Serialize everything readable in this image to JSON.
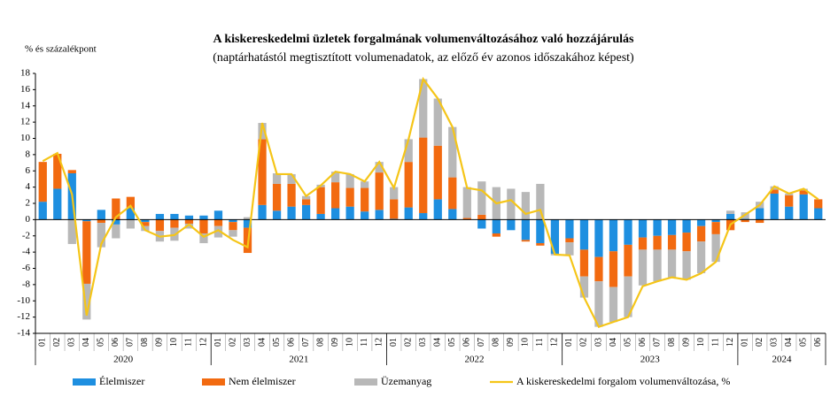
{
  "chart_data": {
    "type": "stacked-bar-line",
    "title": "A kiskereskedelmi üzletek forgalmának volumenváltozásához való hozzájárulás",
    "subtitle": "(naptárhatástól megtisztított volumenadatok, az előző év azonos időszakához képest)",
    "y_label": "% és százalékpont",
    "categories": [
      "01",
      "02",
      "03",
      "04",
      "05",
      "06",
      "07",
      "08",
      "09",
      "10",
      "11",
      "12",
      "01",
      "02",
      "03",
      "04",
      "05",
      "06",
      "07",
      "08",
      "09",
      "10",
      "11",
      "12",
      "01",
      "02",
      "03",
      "04",
      "05",
      "06",
      "07",
      "08",
      "09",
      "10",
      "11",
      "12",
      "01",
      "02",
      "03",
      "04",
      "05",
      "06",
      "07",
      "08",
      "09",
      "10",
      "11",
      "12",
      "01",
      "02",
      "03",
      "04",
      "05",
      "06"
    ],
    "years": [
      "2020",
      "2021",
      "2022",
      "2023",
      "2024"
    ],
    "ylim": [
      -14,
      18
    ],
    "yticks": [
      -14,
      -12,
      -10,
      -8,
      -6,
      -4,
      -2,
      0,
      2,
      4,
      6,
      8,
      10,
      12,
      14,
      16,
      18
    ],
    "series": [
      {
        "name": "Élelmiszer",
        "color": "#1e8fe0",
        "values": [
          2.2,
          3.8,
          5.7,
          -0.2,
          1.2,
          -0.6,
          1.4,
          -0.3,
          0.7,
          0.7,
          0.5,
          0.5,
          1.1,
          -0.3,
          -1.0,
          1.8,
          1.1,
          1.6,
          1.8,
          0.7,
          1.4,
          1.6,
          1.0,
          1.2,
          0.1,
          1.5,
          0.8,
          2.5,
          1.3,
          0.0,
          -1.1,
          -1.7,
          -1.3,
          -2.5,
          -2.9,
          -4.2,
          -2.3,
          -3.7,
          -4.6,
          -3.9,
          -3.1,
          -2.2,
          -2.0,
          -1.9,
          -1.6,
          -0.8,
          -0.3,
          0.7,
          0.1,
          1.4,
          3.2,
          1.6,
          3.1,
          1.4
        ]
      },
      {
        "name": "Nem élelmiszer",
        "color": "#f26a10",
        "values": [
          4.9,
          4.3,
          0.4,
          -7.7,
          -0.4,
          2.6,
          1.4,
          -0.5,
          -1.4,
          -1.0,
          -0.5,
          -1.7,
          -0.8,
          -1.0,
          -3.1,
          8.1,
          3.3,
          2.8,
          0.7,
          3.3,
          3.2,
          2.3,
          2.9,
          4.6,
          2.4,
          5.6,
          9.3,
          6.6,
          3.9,
          0.2,
          0.6,
          -0.4,
          0.0,
          -0.2,
          -0.3,
          0.0,
          -0.5,
          -3.3,
          -3.0,
          -4.4,
          -3.9,
          -1.5,
          -1.7,
          -1.8,
          -2.3,
          -1.9,
          -1.5,
          -1.3,
          -0.3,
          -0.4,
          0.5,
          1.4,
          0.5,
          1.1
        ]
      },
      {
        "name": "Üzemanyag",
        "color": "#b8b8b8",
        "values": [
          0.0,
          0.0,
          -3.0,
          -4.4,
          -3.0,
          -1.7,
          -1.1,
          -0.6,
          -1.3,
          -1.6,
          -0.6,
          -1.2,
          -1.4,
          -0.8,
          0.3,
          2.0,
          1.3,
          1.2,
          0.4,
          0.3,
          1.3,
          1.7,
          0.8,
          1.3,
          1.5,
          2.8,
          7.2,
          5.8,
          6.2,
          3.8,
          4.1,
          4.0,
          3.8,
          3.4,
          4.4,
          -0.2,
          -1.6,
          -2.6,
          -5.6,
          -4.3,
          -5.0,
          -4.4,
          -3.9,
          -3.4,
          -3.5,
          -3.9,
          -3.4,
          0.4,
          0.8,
          0.8,
          0.4,
          0.2,
          0.2,
          0.0
        ]
      },
      {
        "name": "A kiskereskedelmi forgalom volumenváltozása, %",
        "color": "#f5c518",
        "kind": "line",
        "values": [
          7.2,
          8.2,
          3.1,
          -11.8,
          -3.0,
          0.3,
          1.7,
          -1.3,
          -2.1,
          -1.9,
          -0.6,
          -2.1,
          -1.3,
          -2.5,
          -3.4,
          11.9,
          5.6,
          5.6,
          2.9,
          4.2,
          5.9,
          5.6,
          4.7,
          7.1,
          3.9,
          9.9,
          17.3,
          14.9,
          11.4,
          3.9,
          3.6,
          2.0,
          2.4,
          0.7,
          1.2,
          -4.3,
          -4.4,
          -9.6,
          -13.2,
          -12.6,
          -12.0,
          -8.2,
          -7.6,
          -7.1,
          -7.4,
          -6.6,
          -5.2,
          -0.6,
          0.6,
          1.8,
          4.1,
          3.2,
          3.8,
          2.5
        ]
      }
    ]
  }
}
